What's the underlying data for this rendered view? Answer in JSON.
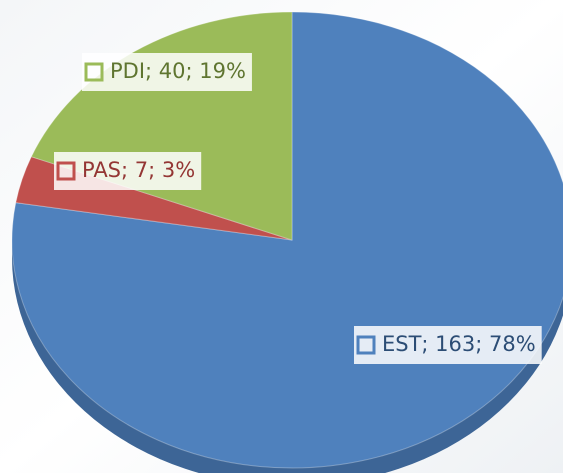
{
  "chart_data": {
    "type": "pie",
    "categories": [
      "EST",
      "PAS",
      "PDI"
    ],
    "values": [
      163,
      7,
      40
    ],
    "value_labels": [
      "EST; 163; 78%",
      "PAS; 7; 3%",
      "PDI; 40; 19%"
    ],
    "colors": [
      "#4f81bd",
      "#c0504d",
      "#9bbb59"
    ]
  }
}
